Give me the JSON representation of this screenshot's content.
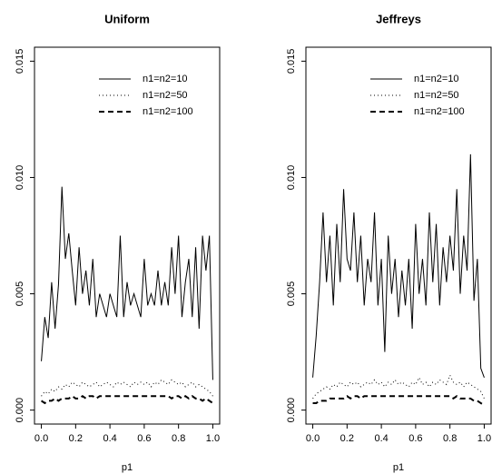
{
  "chart_data": [
    {
      "type": "line",
      "title": "Uniform",
      "xlabel": "p1",
      "x": [
        0,
        0.02,
        0.04,
        0.06,
        0.08,
        0.1,
        0.12,
        0.14,
        0.16,
        0.18,
        0.2,
        0.22,
        0.24,
        0.26,
        0.28,
        0.3,
        0.32,
        0.34,
        0.36,
        0.38,
        0.4,
        0.42,
        0.44,
        0.46,
        0.48,
        0.5,
        0.52,
        0.54,
        0.56,
        0.58,
        0.6,
        0.62,
        0.64,
        0.66,
        0.68,
        0.7,
        0.72,
        0.74,
        0.76,
        0.78,
        0.8,
        0.82,
        0.84,
        0.86,
        0.88,
        0.9,
        0.92,
        0.94,
        0.96,
        0.98,
        1
      ],
      "xlim": [
        -0.04,
        1.04
      ],
      "xticks": [
        {
          "value": 0,
          "label": "0.0"
        },
        0.2,
        0.4,
        0.6,
        0.8,
        {
          "value": 1,
          "label": "1.0"
        }
      ],
      "ylim": [
        -0.0006,
        0.0156
      ],
      "yticks": [
        {
          "value": 0,
          "label": "0.000"
        },
        {
          "value": 0.005,
          "label": "0.005"
        },
        {
          "value": 0.01,
          "label": "0.010"
        },
        {
          "value": 0.015,
          "label": "0.015"
        }
      ],
      "legend": "topright",
      "series": [
        {
          "name": "n1=n2=10",
          "color": "#000000",
          "linestyle": "solid",
          "values": [
            0.0021,
            0.004,
            0.0031,
            0.0055,
            0.0035,
            0.0054,
            0.0096,
            0.0065,
            0.0076,
            0.006,
            0.0045,
            0.007,
            0.005,
            0.006,
            0.0045,
            0.0065,
            0.004,
            0.005,
            0.0045,
            0.004,
            0.005,
            0.0045,
            0.004,
            0.0075,
            0.004,
            0.0055,
            0.0045,
            0.005,
            0.0045,
            0.004,
            0.0065,
            0.0045,
            0.005,
            0.0045,
            0.006,
            0.0045,
            0.0055,
            0.0045,
            0.007,
            0.005,
            0.0075,
            0.004,
            0.0055,
            0.0065,
            0.004,
            0.007,
            0.0035,
            0.0075,
            0.006,
            0.0075,
            0.0013
          ]
        },
        {
          "name": "n1=n2=50",
          "color": "#000000",
          "linestyle": "dotted",
          "values": [
            0.0006,
            0.0008,
            0.0007,
            0.0009,
            0.0008,
            0.001,
            0.0009,
            0.0011,
            0.001,
            0.0012,
            0.0011,
            0.001,
            0.0012,
            0.0011,
            0.001,
            0.0011,
            0.0012,
            0.001,
            0.0011,
            0.0012,
            0.0011,
            0.001,
            0.0012,
            0.0011,
            0.0012,
            0.0011,
            0.001,
            0.0012,
            0.0011,
            0.0012,
            0.0011,
            0.0012,
            0.001,
            0.0012,
            0.0011,
            0.0013,
            0.0012,
            0.0011,
            0.0013,
            0.0012,
            0.0011,
            0.0012,
            0.001,
            0.0011,
            0.0012,
            0.001,
            0.0011,
            0.001,
            0.0009,
            0.0008,
            0.0006
          ]
        },
        {
          "name": "n1=n2=100",
          "color": "#000000",
          "linestyle": "dashed",
          "values": [
            0.0004,
            0.0003,
            0.0004,
            0.0004,
            0.0005,
            0.0004,
            0.0005,
            0.0005,
            0.0005,
            0.0006,
            0.0005,
            0.0005,
            0.0006,
            0.0005,
            0.0006,
            0.0006,
            0.0005,
            0.0006,
            0.0006,
            0.0006,
            0.0006,
            0.0006,
            0.0006,
            0.0006,
            0.0006,
            0.0006,
            0.0006,
            0.0006,
            0.0006,
            0.0006,
            0.0006,
            0.0006,
            0.0006,
            0.0006,
            0.0006,
            0.0006,
            0.0006,
            0.0006,
            0.0005,
            0.0006,
            0.0006,
            0.0005,
            0.0006,
            0.0005,
            0.0006,
            0.0005,
            0.0005,
            0.0004,
            0.0005,
            0.0004,
            0.0003
          ]
        }
      ]
    },
    {
      "type": "line",
      "title": "Jeffreys",
      "xlabel": "p1",
      "x": [
        0,
        0.02,
        0.04,
        0.06,
        0.08,
        0.1,
        0.12,
        0.14,
        0.16,
        0.18,
        0.2,
        0.22,
        0.24,
        0.26,
        0.28,
        0.3,
        0.32,
        0.34,
        0.36,
        0.38,
        0.4,
        0.42,
        0.44,
        0.46,
        0.48,
        0.5,
        0.52,
        0.54,
        0.56,
        0.58,
        0.6,
        0.62,
        0.64,
        0.66,
        0.68,
        0.7,
        0.72,
        0.74,
        0.76,
        0.78,
        0.8,
        0.82,
        0.84,
        0.86,
        0.88,
        0.9,
        0.92,
        0.94,
        0.96,
        0.98,
        1
      ],
      "xlim": [
        -0.04,
        1.04
      ],
      "xticks": [
        {
          "value": 0,
          "label": "0.0"
        },
        0.2,
        0.4,
        0.6,
        0.8,
        {
          "value": 1,
          "label": "1.0"
        }
      ],
      "ylim": [
        -0.0006,
        0.0156
      ],
      "yticks": [
        {
          "value": 0,
          "label": "0.000"
        },
        {
          "value": 0.005,
          "label": "0.005"
        },
        {
          "value": 0.01,
          "label": "0.010"
        },
        {
          "value": 0.015,
          "label": "0.015"
        }
      ],
      "legend": "topright",
      "series": [
        {
          "name": "n1=n2=10",
          "color": "#000000",
          "linestyle": "solid",
          "values": [
            0.0014,
            0.0032,
            0.0055,
            0.0085,
            0.0055,
            0.0075,
            0.0045,
            0.008,
            0.0055,
            0.0095,
            0.0065,
            0.006,
            0.0085,
            0.0055,
            0.0075,
            0.0045,
            0.0065,
            0.0055,
            0.0085,
            0.0045,
            0.0065,
            0.0025,
            0.0075,
            0.005,
            0.0065,
            0.004,
            0.006,
            0.0045,
            0.0065,
            0.0035,
            0.008,
            0.005,
            0.0065,
            0.0045,
            0.0085,
            0.0055,
            0.008,
            0.0045,
            0.007,
            0.0055,
            0.0075,
            0.006,
            0.0095,
            0.005,
            0.0075,
            0.006,
            0.011,
            0.0047,
            0.0065,
            0.0018,
            0.0014
          ]
        },
        {
          "name": "n1=n2=50",
          "color": "#000000",
          "linestyle": "dotted",
          "values": [
            0.0005,
            0.0007,
            0.0008,
            0.0009,
            0.001,
            0.0009,
            0.0011,
            0.001,
            0.0012,
            0.0011,
            0.001,
            0.0012,
            0.0011,
            0.0012,
            0.001,
            0.0011,
            0.0012,
            0.0011,
            0.0013,
            0.0011,
            0.0012,
            0.001,
            0.0012,
            0.0011,
            0.0013,
            0.0011,
            0.0012,
            0.0011,
            0.001,
            0.0012,
            0.0011,
            0.0014,
            0.0011,
            0.0012,
            0.001,
            0.0012,
            0.0011,
            0.0013,
            0.0012,
            0.0011,
            0.0015,
            0.0012,
            0.0011,
            0.0012,
            0.001,
            0.0012,
            0.0011,
            0.001,
            0.0009,
            0.0008,
            0.0005
          ]
        },
        {
          "name": "n1=n2=100",
          "color": "#000000",
          "linestyle": "dashed",
          "values": [
            0.0003,
            0.0003,
            0.0004,
            0.0004,
            0.0004,
            0.0005,
            0.0005,
            0.0005,
            0.0005,
            0.0005,
            0.0006,
            0.0005,
            0.0006,
            0.0006,
            0.0005,
            0.0006,
            0.0006,
            0.0006,
            0.0006,
            0.0006,
            0.0006,
            0.0006,
            0.0006,
            0.0006,
            0.0006,
            0.0006,
            0.0006,
            0.0006,
            0.0006,
            0.0006,
            0.0006,
            0.0006,
            0.0006,
            0.0006,
            0.0006,
            0.0006,
            0.0006,
            0.0006,
            0.0006,
            0.0006,
            0.0006,
            0.0005,
            0.0006,
            0.0005,
            0.0005,
            0.0005,
            0.0005,
            0.0004,
            0.0004,
            0.0003,
            0.0002
          ]
        }
      ]
    }
  ]
}
